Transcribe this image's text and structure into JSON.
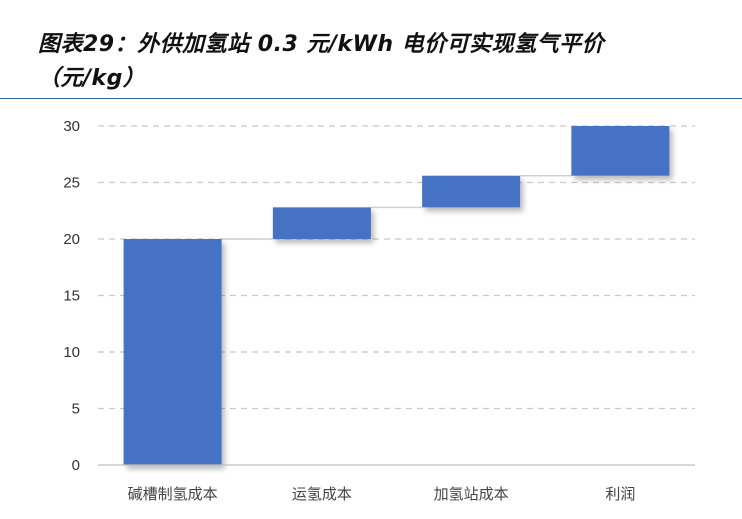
{
  "title": {
    "line1": "图表29：外供加氢站 0.3 元/kWh 电价可实现氢气平价",
    "line2": "（元/kg）"
  },
  "colors": {
    "bar": "#4472c4",
    "title_rule": "#2f6fa6",
    "grid": "#c8c8c8",
    "connector": "#d0d0d0"
  },
  "chart_data": {
    "type": "waterfall",
    "categories": [
      "碱槽制氢成本",
      "运氢成本",
      "加氢站成本",
      "利润"
    ],
    "series": [
      {
        "values": [
          20,
          2.8,
          2.8,
          4.4
        ],
        "bases": [
          0,
          20,
          22.8,
          25.6
        ],
        "tops": [
          20,
          22.8,
          25.6,
          30
        ]
      }
    ],
    "yticks": [
      "0",
      "5",
      "10",
      "15",
      "20",
      "25",
      "30"
    ],
    "ylim": [
      0,
      30
    ],
    "grid": true,
    "grid_style": "dashed",
    "legend": "none"
  }
}
